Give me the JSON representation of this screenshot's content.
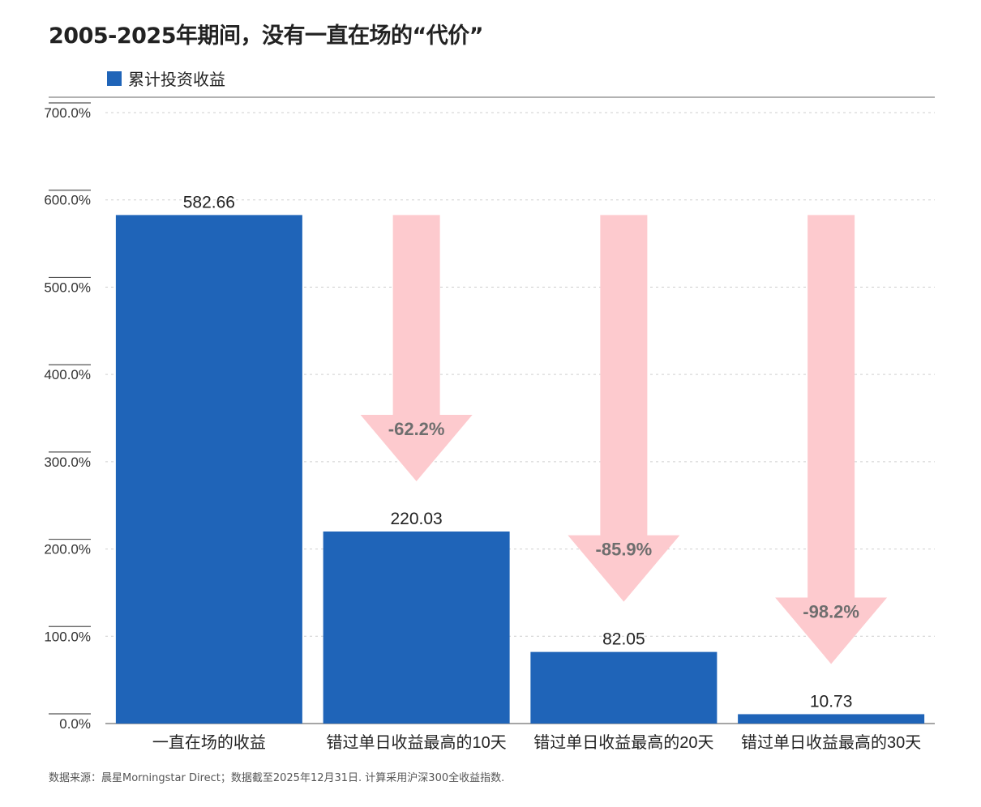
{
  "title": "2005-2025年期间，没有一直在场的“代价”",
  "legend": {
    "label": "累计投资收益",
    "color": "#1f64b8"
  },
  "footnote": "数据来源：晨星Morningstar Direct；数据截至2025年12月31日. 计算采用沪深300全收益指数.",
  "chart_data": {
    "type": "bar",
    "title": "2005-2025年期间，没有一直在场的“代价”",
    "xlabel": "",
    "ylabel": "",
    "ylim": [
      0,
      700
    ],
    "y_ticks": [
      "0.0%",
      "100.0%",
      "200.0%",
      "300.0%",
      "400.0%",
      "500.0%",
      "600.0%",
      "700.0%"
    ],
    "grid": true,
    "legend_position": "top-left",
    "categories": [
      "一直在场的收益",
      "错过单日收益最高的10天",
      "错过单日收益最高的20天",
      "错过单日收益最高的30天"
    ],
    "series": [
      {
        "name": "累计投资收益",
        "values": [
          582.66,
          220.03,
          82.05,
          10.73
        ],
        "labels": [
          "582.66",
          "220.03",
          "82.05",
          "10.73"
        ]
      }
    ],
    "annotations": [
      {
        "category_index": 1,
        "from": 582.66,
        "to": 220.03,
        "label": "-62.2%"
      },
      {
        "category_index": 2,
        "from": 582.66,
        "to": 82.05,
        "label": "-85.9%"
      },
      {
        "category_index": 3,
        "from": 582.66,
        "to": 10.73,
        "label": "-98.2%"
      }
    ],
    "colors": {
      "bar": "#1f64b8",
      "arrow": "#fdcace",
      "arrow_text": "#6e6e6e"
    }
  }
}
